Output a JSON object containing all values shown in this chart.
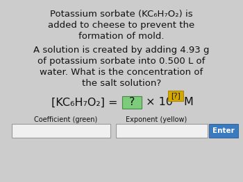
{
  "background_color": "#cccccc",
  "title_text_line1": "Potassium sorbate (KC₆H₇O₂) is",
  "title_text_line2": "added to cheese to prevent the",
  "title_text_line3": "formation of mold.",
  "body_text_line1": "A solution is created by adding 4.93 g",
  "body_text_line2": "of potassium sorbate into 0.500 L of",
  "body_text_line3": "water. What is the concentration of",
  "body_text_line4": "the salt solution?",
  "equation_prefix": "[KC₆H₇O₂] = ",
  "equation_box_text": " ? ",
  "equation_box_color": "#7ccc7c",
  "equation_suffix_base": " × 10",
  "equation_suffix_exp": "[?]",
  "equation_suffix_exp_color": "#d4a800",
  "equation_suffix_end": "M",
  "label_coeff": "Coefficient (green)",
  "label_exp": "Exponent (yellow)",
  "input_box_color": "#f0f0f0",
  "enter_button_color": "#3a7abf",
  "enter_button_text": "Enter",
  "enter_button_text_color": "#ffffff",
  "text_color": "#111111",
  "font_size_title": 9.5,
  "font_size_body": 9.5,
  "font_size_eq": 11.5,
  "font_size_label": 7.0,
  "font_size_enter": 7.5
}
